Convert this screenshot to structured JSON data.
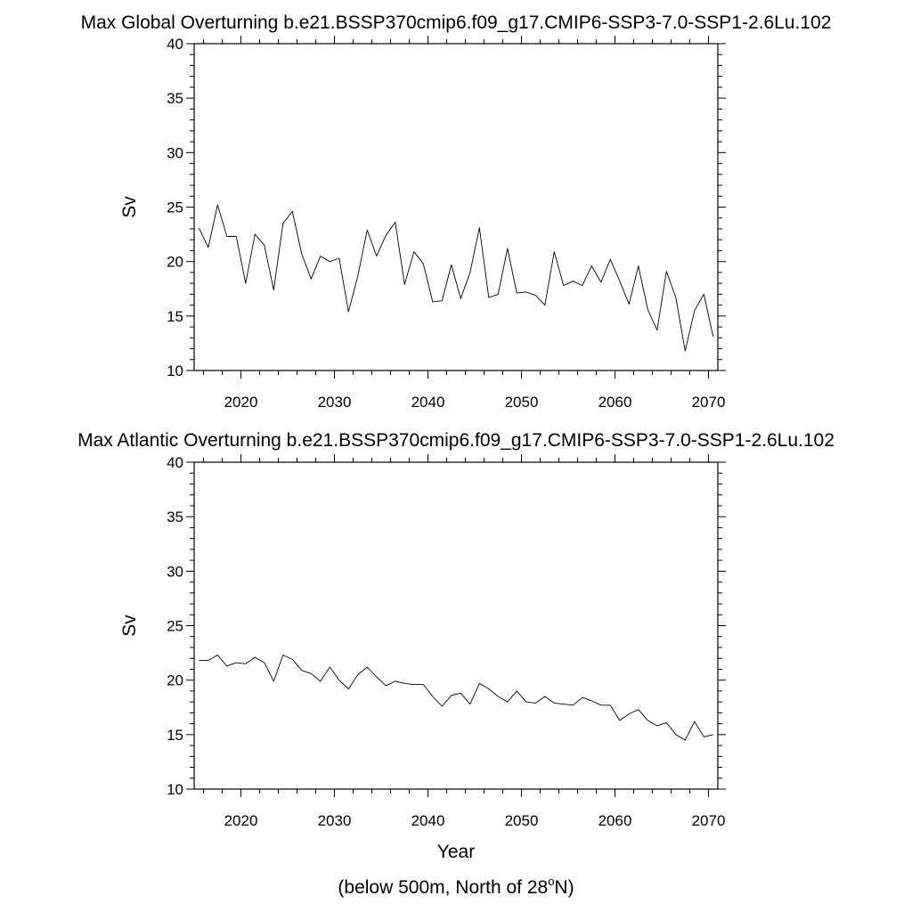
{
  "chart_data": [
    {
      "type": "line",
      "title": "Max Global Overturning b.e21.BSSP370cmip6.f09_g17.CMIP6-SSP3-7.0-SSP1-2.6Lu.102",
      "xlabel": "",
      "ylabel": "Sv",
      "xlim": [
        2015,
        2071
      ],
      "ylim": [
        10,
        40
      ],
      "xticks": [
        2020,
        2030,
        2040,
        2050,
        2060,
        2070
      ],
      "yticks": [
        10,
        15,
        20,
        25,
        30,
        35,
        40
      ],
      "grid": false,
      "series": [
        {
          "x": [
            2015.5,
            2016.5,
            2017.5,
            2018.5,
            2019.5,
            2020.5,
            2021.5,
            2022.5,
            2023.5,
            2024.5,
            2025.5,
            2026.5,
            2027.5,
            2028.5,
            2029.5,
            2030.5,
            2031.5,
            2032.5,
            2033.5,
            2034.5,
            2035.5,
            2036.5,
            2037.5,
            2038.5,
            2039.5,
            2040.5,
            2041.5,
            2042.5,
            2043.5,
            2044.5,
            2045.5,
            2046.5,
            2047.5,
            2048.5,
            2049.5,
            2050.5,
            2051.5,
            2052.5,
            2053.5,
            2054.5,
            2055.5,
            2056.5,
            2057.5,
            2058.5,
            2059.5,
            2060.5,
            2061.5,
            2062.5,
            2063.5,
            2064.5,
            2065.5,
            2066.5,
            2067.5,
            2068.5,
            2069.5,
            2070.5
          ],
          "y": [
            23.1,
            21.3,
            25.2,
            22.3,
            22.3,
            18.0,
            22.5,
            21.5,
            17.4,
            23.5,
            24.6,
            20.7,
            18.4,
            20.5,
            20.0,
            20.3,
            15.4,
            18.7,
            22.9,
            20.5,
            22.4,
            23.6,
            17.9,
            20.9,
            19.8,
            16.3,
            16.4,
            19.7,
            16.6,
            19.0,
            23.1,
            16.7,
            17.0,
            21.2,
            17.1,
            17.2,
            16.9,
            16.0,
            20.9,
            17.8,
            18.2,
            17.8,
            19.6,
            18.1,
            20.2,
            18.2,
            16.1,
            19.6,
            15.6,
            13.7,
            19.1,
            16.7,
            11.8,
            15.5,
            17.0,
            13.1
          ]
        }
      ]
    },
    {
      "type": "line",
      "title": "Max Atlantic Overturning b.e21.BSSP370cmip6.f09_g17.CMIP6-SSP3-7.0-SSP1-2.6Lu.102",
      "xlabel": "Year",
      "ylabel": "Sv",
      "xlim": [
        2015,
        2071
      ],
      "ylim": [
        10,
        40
      ],
      "xticks": [
        2020,
        2030,
        2040,
        2050,
        2060,
        2070
      ],
      "yticks": [
        10,
        15,
        20,
        25,
        30,
        35,
        40
      ],
      "grid": false,
      "series": [
        {
          "x": [
            2015.5,
            2016.5,
            2017.5,
            2018.5,
            2019.5,
            2020.5,
            2021.5,
            2022.5,
            2023.5,
            2024.5,
            2025.5,
            2026.5,
            2027.5,
            2028.5,
            2029.5,
            2030.5,
            2031.5,
            2032.5,
            2033.5,
            2034.5,
            2035.5,
            2036.5,
            2037.5,
            2038.5,
            2039.5,
            2040.5,
            2041.5,
            2042.5,
            2043.5,
            2044.5,
            2045.5,
            2046.5,
            2047.5,
            2048.5,
            2049.5,
            2050.5,
            2051.5,
            2052.5,
            2053.5,
            2054.5,
            2055.5,
            2056.5,
            2057.5,
            2058.5,
            2059.5,
            2060.5,
            2061.5,
            2062.5,
            2063.5,
            2064.5,
            2065.5,
            2066.5,
            2067.5,
            2068.5,
            2069.5,
            2070.5
          ],
          "y": [
            21.8,
            21.8,
            22.3,
            21.3,
            21.6,
            21.5,
            22.1,
            21.6,
            19.9,
            22.3,
            21.9,
            20.9,
            20.6,
            19.9,
            21.2,
            20.0,
            19.2,
            20.5,
            21.2,
            20.3,
            19.5,
            19.9,
            19.7,
            19.6,
            19.6,
            18.5,
            17.6,
            18.6,
            18.8,
            17.8,
            19.7,
            19.2,
            18.5,
            18.0,
            19.0,
            18.0,
            17.9,
            18.5,
            17.9,
            17.8,
            17.7,
            18.4,
            18.1,
            17.7,
            17.7,
            16.3,
            16.9,
            17.3,
            16.3,
            15.8,
            16.1,
            15.0,
            14.5,
            16.2,
            14.8,
            15.0
          ]
        }
      ]
    }
  ],
  "footer": {
    "prefix": "(below 500m, North of 28",
    "superscript": "o",
    "suffix": "N)"
  }
}
